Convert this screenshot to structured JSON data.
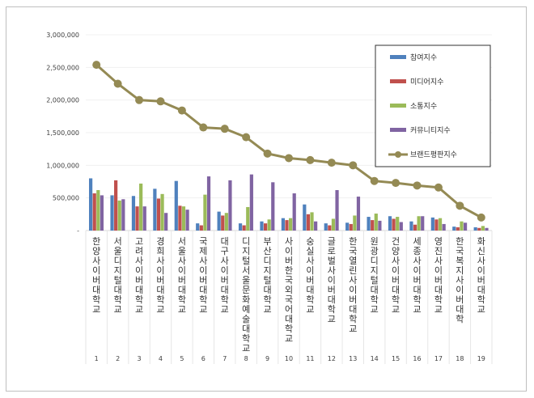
{
  "chart_data": {
    "type": "bar",
    "categories": [
      "한양사이버대학교",
      "서울디지털대학교",
      "고려사이버대학교",
      "경희사이버대학교",
      "서울사이버대학교",
      "국제사이버대학교",
      "대구사이버대학교",
      "디지털서울문화예술대학교",
      "부산디지털대학교",
      "사이버한국외국어대학교",
      "숭실사이버대학교",
      "글로벌사이버대학교",
      "한국열린사이버대학교",
      "원광디지털대학교",
      "건양사이버대학교",
      "세종사이버대학교",
      "영진사이버대학교",
      "한국복지사이버대학",
      "화신사이버대학교"
    ],
    "ranks": [
      "1",
      "2",
      "3",
      "4",
      "5",
      "6",
      "7",
      "8",
      "9",
      "10",
      "11",
      "12",
      "13",
      "14",
      "15",
      "16",
      "17",
      "18",
      "19"
    ],
    "ylim": [
      0,
      3000000
    ],
    "yticks": [
      "-",
      "500,000",
      "1,000,000",
      "1,500,000",
      "2,000,000",
      "2,500,000",
      "3,000,000"
    ],
    "ytick_values": [
      0,
      500000,
      1000000,
      1500000,
      2000000,
      2500000,
      3000000
    ],
    "legend_position": "top-right",
    "series": [
      {
        "name": "참여지수",
        "color": "#4f81bd",
        "values": [
          800000,
          540000,
          530000,
          640000,
          760000,
          110000,
          290000,
          110000,
          140000,
          190000,
          400000,
          110000,
          120000,
          210000,
          220000,
          140000,
          200000,
          60000,
          50000
        ]
      },
      {
        "name": "미디어지수",
        "color": "#c0504d",
        "values": [
          570000,
          770000,
          370000,
          490000,
          380000,
          80000,
          230000,
          80000,
          110000,
          160000,
          250000,
          80000,
          100000,
          160000,
          180000,
          90000,
          170000,
          50000,
          40000
        ]
      },
      {
        "name": "소통지수",
        "color": "#9bbb59",
        "values": [
          620000,
          460000,
          720000,
          560000,
          370000,
          550000,
          270000,
          360000,
          170000,
          190000,
          280000,
          180000,
          230000,
          260000,
          210000,
          220000,
          190000,
          140000,
          70000
        ]
      },
      {
        "name": "커뮤니티지수",
        "color": "#8064a2",
        "values": [
          540000,
          480000,
          370000,
          270000,
          320000,
          830000,
          770000,
          860000,
          740000,
          570000,
          140000,
          620000,
          520000,
          150000,
          130000,
          220000,
          100000,
          120000,
          40000
        ]
      }
    ],
    "line_series": {
      "name": "브랜드평판지수",
      "color": "#948a54",
      "values": [
        2540000,
        2250000,
        2000000,
        1980000,
        1840000,
        1580000,
        1560000,
        1430000,
        1180000,
        1110000,
        1080000,
        1040000,
        1000000,
        760000,
        730000,
        690000,
        660000,
        380000,
        200000
      ]
    }
  }
}
